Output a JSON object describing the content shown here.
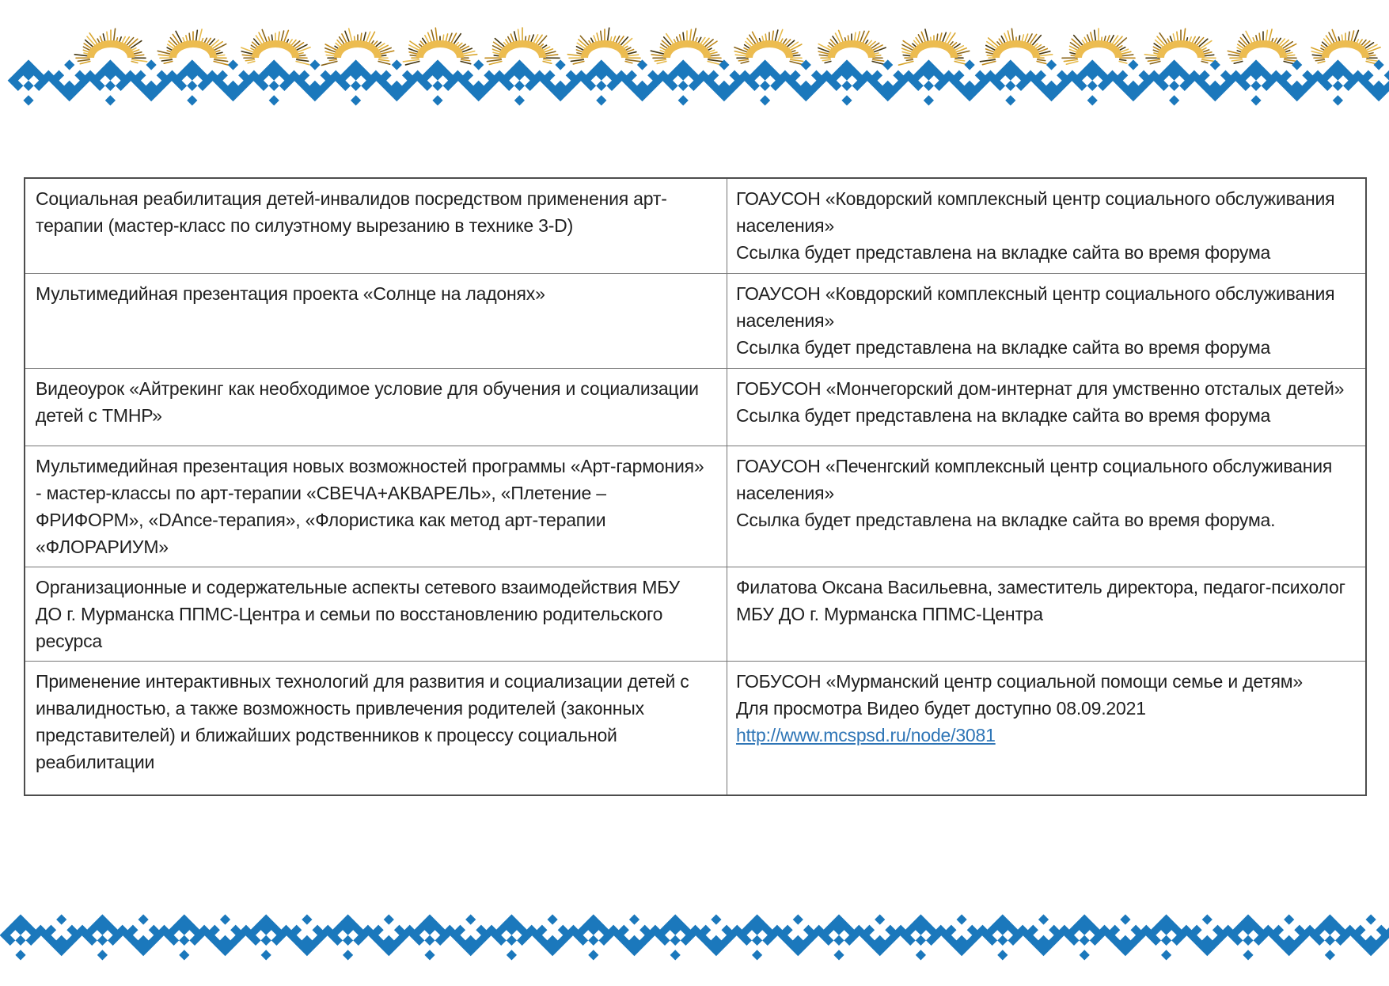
{
  "colors": {
    "ornament_blue": "#1b78bc",
    "ornament_gold": "#ecbc50",
    "ornament_gold_dark": "#c18a1b",
    "link_blue": "#2e75b6"
  },
  "ornament": {
    "top_border_name": "sami-ornament-top-border",
    "bottom_border_name": "sami-ornament-bottom-border"
  },
  "table": {
    "rows": [
      {
        "topic": "Социальная реабилитация детей-инвалидов посредством применения арт-терапии (мастер-класс по силуэтному вырезанию в технике 3-D)",
        "details": [
          "ГОАУСОН «Ковдорский комплексный центр социального обслуживания населения»",
          "Ссылка будет представлена на вкладке сайта во время форума"
        ]
      },
      {
        "topic": "Мультимедийная презентация  проекта «Солнце на ладонях»",
        "details": [
          "ГОАУСОН «Ковдорский комплексный центр социального обслуживания населения»",
          "Ссылка будет представлена на вкладке сайта во время форума"
        ]
      },
      {
        "topic": "Видеоурок «Айтрекинг как необходимое условие для обучения и социализации детей с ТМНР»",
        "details": [
          "ГОБУСОН «Мончегорский дом-интернат для умственно отсталых детей»",
          "Ссылка будет представлена на вкладке сайта во время форума"
        ]
      },
      {
        "topic": "Мультимедийная презентация  новых возможностей программы «Арт-гармония» - мастер-классы по арт-терапии «СВЕЧА+АКВАРЕЛЬ», «Плетение – ФРИФОРМ», «DAnce-терапия», «Флористика как метод арт-терапии «ФЛОРАРИУМ»",
        "details": [
          "ГОАУСОН «Печенгский комплексный центр социального обслуживания населения»",
          "Ссылка будет представлена на вкладке сайта во время форума."
        ]
      },
      {
        "topic": "Организационные и содержательные аспекты сетевого взаимодействия МБУ ДО г. Мурманска ППМС-Центра и семьи по восстановлению родительского ресурса",
        "details": [
          "Филатова Оксана Васильевна, заместитель директора, педагог-психолог МБУ ДО г. Мурманска ППМС-Центра"
        ]
      },
      {
        "topic": "Применение интерактивных технологий для развития и социализации детей с инвалидностью, а также возможность привлечения родителей (законных представителей) и ближайших родственников к процессу социальной реабилитации",
        "details": [
          "ГОБУСОН «Мурманский центр социальной помощи семье и детям»",
          "Для просмотра Видео будет доступно 08.09.2021"
        ],
        "link": "http://www.mcspsd.ru/node/3081"
      }
    ]
  }
}
